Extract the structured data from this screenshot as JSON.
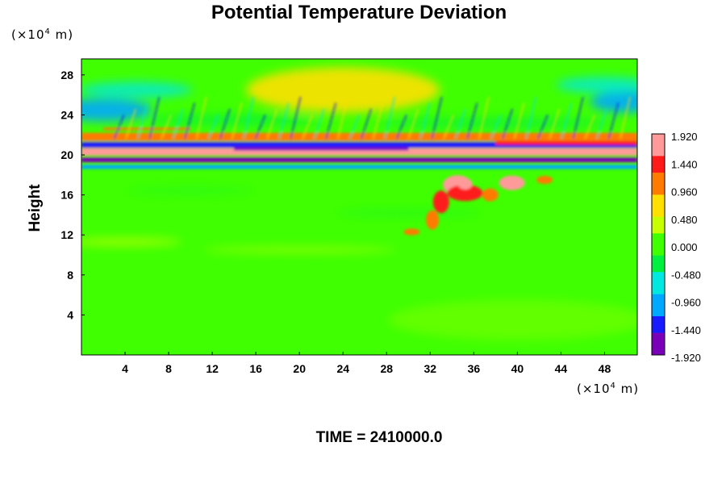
{
  "chart_data": {
    "type": "heatmap",
    "title": "Potential Temperature Deviation",
    "ylabel": "Height",
    "y_unit_label": "(×10",
    "y_unit_exp": "4",
    "y_unit_tail": " m)",
    "x_unit_label": "(×10",
    "x_unit_exp": "4",
    "x_unit_tail": " m)",
    "footer": "TIME = 2410000.0",
    "x_ticks": [
      "4",
      "8",
      "12",
      "16",
      "20",
      "24",
      "28",
      "32",
      "36",
      "40",
      "44",
      "48"
    ],
    "y_ticks": [
      "4",
      "8",
      "12",
      "16",
      "20",
      "24",
      "28"
    ],
    "xlim": [
      0,
      51
    ],
    "ylim": [
      0,
      29.6
    ],
    "colorbar": {
      "min": -1.92,
      "max": 1.92,
      "labels": [
        "1.920",
        "1.440",
        "0.960",
        "0.480",
        "0.000",
        "-0.480",
        "-0.960",
        "-1.440",
        "-1.920"
      ]
    },
    "colormap": [
      "#7a00b8",
      "#1a1aff",
      "#00a8ff",
      "#00e8e0",
      "#00f040",
      "#40ff00",
      "#c8ff00",
      "#ffe000",
      "#ff7a00",
      "#ff1a1a",
      "#ff9a9a"
    ],
    "features": [
      {
        "name": "stratospheric-band-warm",
        "x_range": [
          0,
          51
        ],
        "y_center": 20.3,
        "value": 1.92
      },
      {
        "name": "stratospheric-band-cold",
        "x_range": [
          0,
          51
        ],
        "y_center": 19.4,
        "value": -1.92
      },
      {
        "name": "upper-cold-layer",
        "x_range": [
          0,
          51
        ],
        "y_center": 22.6,
        "value": -1.2
      },
      {
        "name": "convective-warm-anomaly",
        "x_range": [
          32,
          42
        ],
        "y_center": 16.5,
        "value": 1.6
      },
      {
        "name": "upper-left-cold-pool",
        "x_range": [
          0,
          5
        ],
        "y_center": 24.5,
        "value": -1.1
      },
      {
        "name": "upper-right-cold-pool",
        "x_range": [
          47,
          51
        ],
        "y_center": 25.2,
        "value": -1.0
      },
      {
        "name": "upper-central-warm-region",
        "x_range": [
          18,
          30
        ],
        "y_center": 26.5,
        "value": 0.5
      }
    ]
  }
}
